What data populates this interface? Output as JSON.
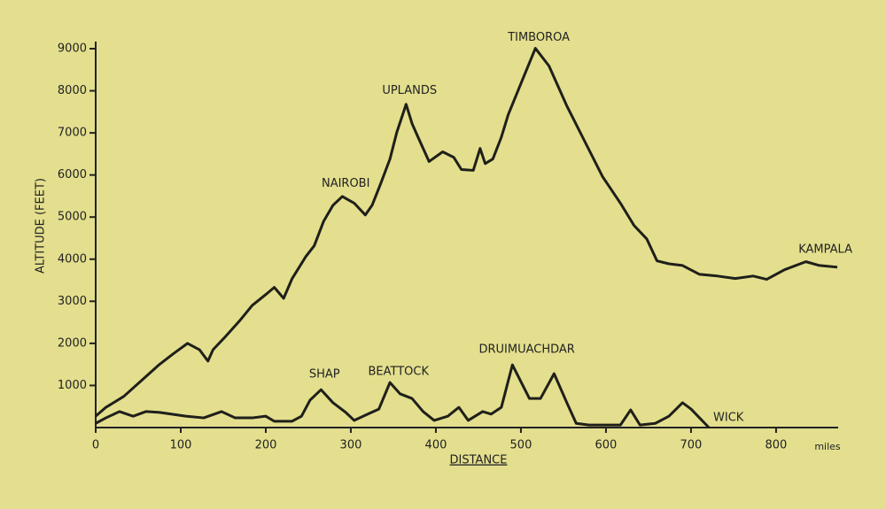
{
  "chart_data": {
    "type": "line",
    "xlabel": "DISTANCE",
    "ylabel": "ALTITUDE (FEET)",
    "xunit": "miles",
    "xlim": [
      0,
      873
    ],
    "ylim": [
      0,
      9000
    ],
    "xticks": [
      0,
      100,
      200,
      300,
      400,
      500,
      600,
      700,
      800
    ],
    "yticks": [
      1000,
      2000,
      3000,
      4000,
      5000,
      6000,
      7000,
      8000,
      9000
    ],
    "series": [
      {
        "color": "#1f1f1a",
        "x": [
          0,
          12,
          33,
          54,
          75,
          91,
          108,
          122,
          132,
          138,
          153,
          169,
          184,
          200,
          210,
          221,
          231,
          247,
          257,
          268,
          279,
          290,
          304,
          317,
          325,
          335,
          346,
          354,
          365,
          372,
          379,
          392,
          408,
          421,
          430,
          444,
          452,
          458,
          467,
          477,
          485,
          502,
          517,
          533,
          554,
          575,
          596,
          617,
          633,
          648,
          660,
          674,
          690,
          710,
          731,
          752,
          773,
          789,
          810,
          835,
          851,
          872
        ],
        "values": [
          270,
          480,
          740,
          1120,
          1500,
          1750,
          2000,
          1850,
          1580,
          1850,
          2170,
          2530,
          2900,
          3160,
          3330,
          3070,
          3540,
          4060,
          4320,
          4900,
          5280,
          5490,
          5330,
          5050,
          5280,
          5790,
          6380,
          7010,
          7680,
          7220,
          6900,
          6320,
          6550,
          6420,
          6130,
          6110,
          6630,
          6270,
          6380,
          6900,
          7430,
          8270,
          9010,
          8590,
          7640,
          6800,
          5960,
          5330,
          4800,
          4480,
          3960,
          3890,
          3850,
          3640,
          3600,
          3540,
          3600,
          3520,
          3750,
          3940,
          3850,
          3810
        ]
      },
      {
        "color": "#1f1f1a",
        "x": [
          0,
          12,
          28,
          44,
          59,
          75,
          106,
          127,
          148,
          164,
          184,
          200,
          210,
          231,
          242,
          252,
          265,
          279,
          294,
          304,
          320,
          333,
          346,
          358,
          372,
          385,
          398,
          414,
          427,
          438,
          455,
          465,
          477,
          490,
          510,
          523,
          539,
          554,
          565,
          580,
          617,
          629,
          640,
          658,
          674,
          690,
          700,
          721
        ],
        "values": [
          100,
          230,
          380,
          270,
          380,
          360,
          270,
          230,
          380,
          230,
          230,
          270,
          150,
          150,
          270,
          650,
          900,
          590,
          360,
          170,
          320,
          440,
          1070,
          800,
          690,
          380,
          170,
          270,
          480,
          170,
          380,
          320,
          480,
          1490,
          690,
          690,
          1280,
          590,
          100,
          60,
          60,
          420,
          60,
          100,
          270,
          590,
          440,
          0
        ]
      }
    ],
    "annotations": [
      {
        "text": "NAIROBI",
        "x": 294,
        "y": 5790
      },
      {
        "text": "UPLANDS",
        "x": 369,
        "y": 8000
      },
      {
        "text": "TIMBOROA",
        "x": 521,
        "y": 9260
      },
      {
        "text": "KAMPALA",
        "x": 858,
        "y": 4230
      },
      {
        "text": "SHAP",
        "x": 269,
        "y": 1260
      },
      {
        "text": "BEATTOCK",
        "x": 356,
        "y": 1330
      },
      {
        "text": "DRUIMUACHDAR",
        "x": 507,
        "y": 1850
      },
      {
        "text": "WICK",
        "x": 744,
        "y": 230
      }
    ]
  }
}
